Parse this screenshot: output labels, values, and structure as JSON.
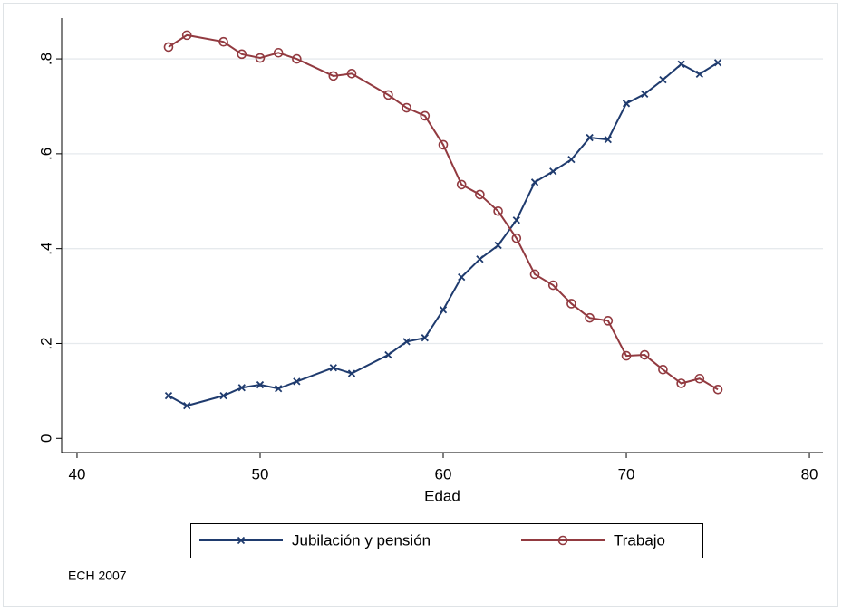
{
  "chart_data": {
    "type": "line",
    "x_label": "Edad",
    "note": "ECH 2007",
    "x": [
      45,
      46,
      48,
      49,
      50,
      51,
      52,
      54,
      55,
      57,
      58,
      59,
      60,
      61,
      62,
      63,
      64,
      65,
      66,
      67,
      68,
      69,
      70,
      71,
      72,
      73,
      74,
      75
    ],
    "series": [
      {
        "name": "Jubilación y pensión",
        "color": "#1f3b6e",
        "marker": "x",
        "values": [
          0.09,
          0.069,
          0.09,
          0.107,
          0.113,
          0.105,
          0.12,
          0.149,
          0.137,
          0.176,
          0.204,
          0.212,
          0.271,
          0.34,
          0.378,
          0.407,
          0.46,
          0.54,
          0.563,
          0.588,
          0.634,
          0.63,
          0.706,
          0.726,
          0.756,
          0.789,
          0.768,
          0.792
        ]
      },
      {
        "name": "Trabajo",
        "color": "#923a40",
        "marker": "circle",
        "values": [
          0.825,
          0.85,
          0.836,
          0.81,
          0.802,
          0.813,
          0.8,
          0.764,
          0.769,
          0.724,
          0.697,
          0.68,
          0.619,
          0.535,
          0.514,
          0.479,
          0.422,
          0.346,
          0.323,
          0.284,
          0.254,
          0.248,
          0.174,
          0.176,
          0.145,
          0.116,
          0.126,
          0.103
        ]
      }
    ],
    "xlim": [
      39.16,
      80.74
    ],
    "xticks": [
      40,
      50,
      60,
      70,
      80
    ],
    "ylim": [
      -0.03,
      0.886
    ],
    "yticks": [
      0,
      {
        "value": 0.2,
        "label": ".2"
      },
      {
        "value": 0.4,
        "label": ".4"
      },
      {
        "value": 0.6,
        "label": ".6"
      },
      {
        "value": 0.8,
        "label": ".8"
      }
    ],
    "grid": true,
    "legend": "bottom"
  }
}
